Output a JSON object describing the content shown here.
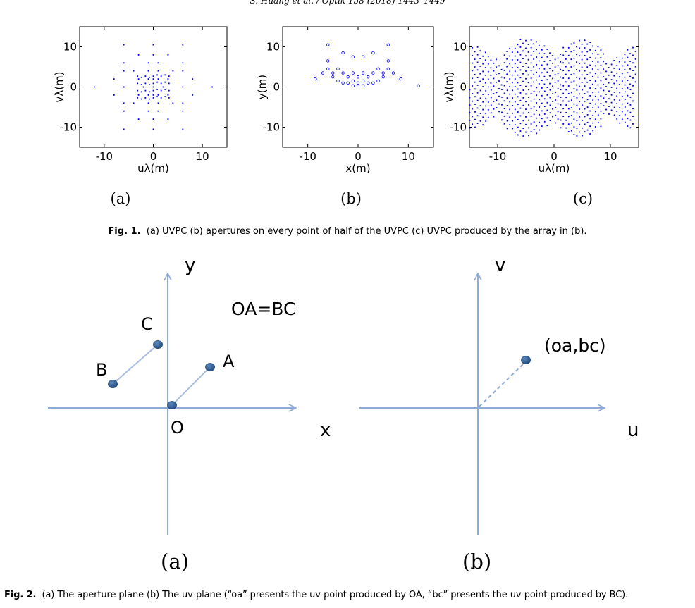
{
  "running_head": "S. Huang et al. / Optik 158 (2018) 1443–1449",
  "fig1": {
    "caption_label": "Fig. 1.",
    "caption_text": "(a) UVPC (b) apertures on every point of half of the UVPC (c) UVPC produced by the array in (b).",
    "panels": [
      {
        "sub": "(a)",
        "xlabel": "uλ(m)",
        "ylabel": "vλ(m)",
        "xticks": [
          -10,
          0,
          10
        ],
        "yticks": [
          10,
          0,
          -10
        ],
        "xlim": [
          -15,
          15
        ],
        "ylim": [
          -15,
          15
        ],
        "marker": "dot",
        "color": "#0000ff"
      },
      {
        "sub": "(b)",
        "xlabel": "x(m)",
        "ylabel": "y(m)",
        "xticks": [
          -10,
          0,
          10
        ],
        "yticks": [
          10,
          0,
          -10
        ],
        "xlim": [
          -15,
          15
        ],
        "ylim": [
          -15,
          15
        ],
        "marker": "circle",
        "color": "#0000ff"
      },
      {
        "sub": "(c)",
        "xlabel": "uλ(m)",
        "ylabel": "vλ(m)",
        "xticks": [
          -10,
          0,
          10
        ],
        "yticks": [
          10,
          0,
          -10
        ],
        "xlim": [
          -15,
          15
        ],
        "ylim": [
          -15,
          15
        ],
        "marker": "dot",
        "color": "#0000ff"
      }
    ]
  },
  "fig2": {
    "caption_label": "Fig. 2.",
    "caption_text": "(a) The aperture plane (b) The uv-plane (“oa” presents the uv-point produced by OA, “bc” presents the uv-point produced by BC).",
    "panel_a": {
      "sub": "(a)",
      "x_axis": "x",
      "y_axis": "y",
      "equation": "OA=BC",
      "points": [
        "A",
        "B",
        "C",
        "O"
      ]
    },
    "panel_b": {
      "sub": "(b)",
      "u_axis": "u",
      "v_axis": "v",
      "point_label": "(oa,bc)"
    },
    "colors": {
      "axis": "#8eaad8",
      "point": "#2e5b8f",
      "segment": "#a9bfe0"
    }
  }
}
